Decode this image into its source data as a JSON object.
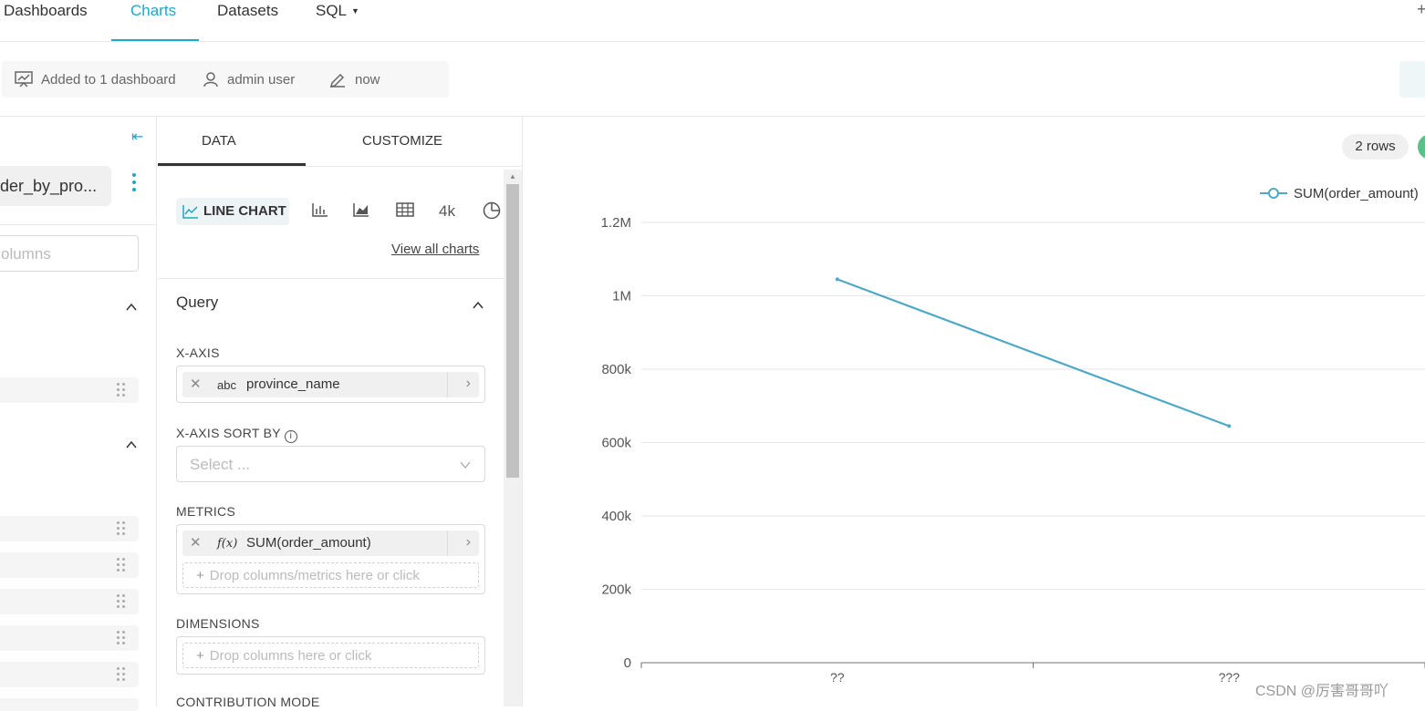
{
  "nav": {
    "dashboards": "Dashboards",
    "charts": "Charts",
    "datasets": "Datasets",
    "sql": "SQL"
  },
  "meta": {
    "added": "Added to 1 dashboard",
    "owner": "admin user",
    "modified": "now"
  },
  "dataset": {
    "name": "der_by_pro...",
    "search_placeholder": "olumns"
  },
  "panel": {
    "tab_data": "DATA",
    "tab_customize": "CUSTOMIZE",
    "chart_type": "LINE CHART",
    "chart_type_4k": "4k",
    "view_all": "View all charts",
    "query_title": "Query",
    "x_axis_label": "X-AXIS",
    "x_axis_type": "abc",
    "x_axis_value": "province_name",
    "x_axis_sort_label": "X-AXIS SORT BY",
    "x_axis_sort_placeholder": "Select ...",
    "metrics_label": "METRICS",
    "metric_type": "f(x)",
    "metric_value": "SUM(order_amount)",
    "metrics_drop": "Drop columns/metrics here or click",
    "dimensions_label": "DIMENSIONS",
    "dimensions_drop": "Drop columns here or click",
    "contribution_label": "CONTRIBUTION MODE"
  },
  "rows_badge": "2 rows",
  "watermark": "CSDN @厉害哥哥吖",
  "colors": {
    "accent": "#20a7c9",
    "line": "#4fa8c6",
    "status": "#5ac189"
  },
  "chart_data": {
    "type": "line",
    "categories": [
      "??",
      "???"
    ],
    "series": [
      {
        "name": "SUM(order_amount)",
        "values": [
          1045000,
          645000
        ]
      }
    ],
    "y_ticks": [
      "0",
      "200k",
      "400k",
      "600k",
      "800k",
      "1M",
      "1.2M"
    ],
    "ylim": [
      0,
      1200000
    ],
    "grid": true,
    "legend": "top-right"
  }
}
